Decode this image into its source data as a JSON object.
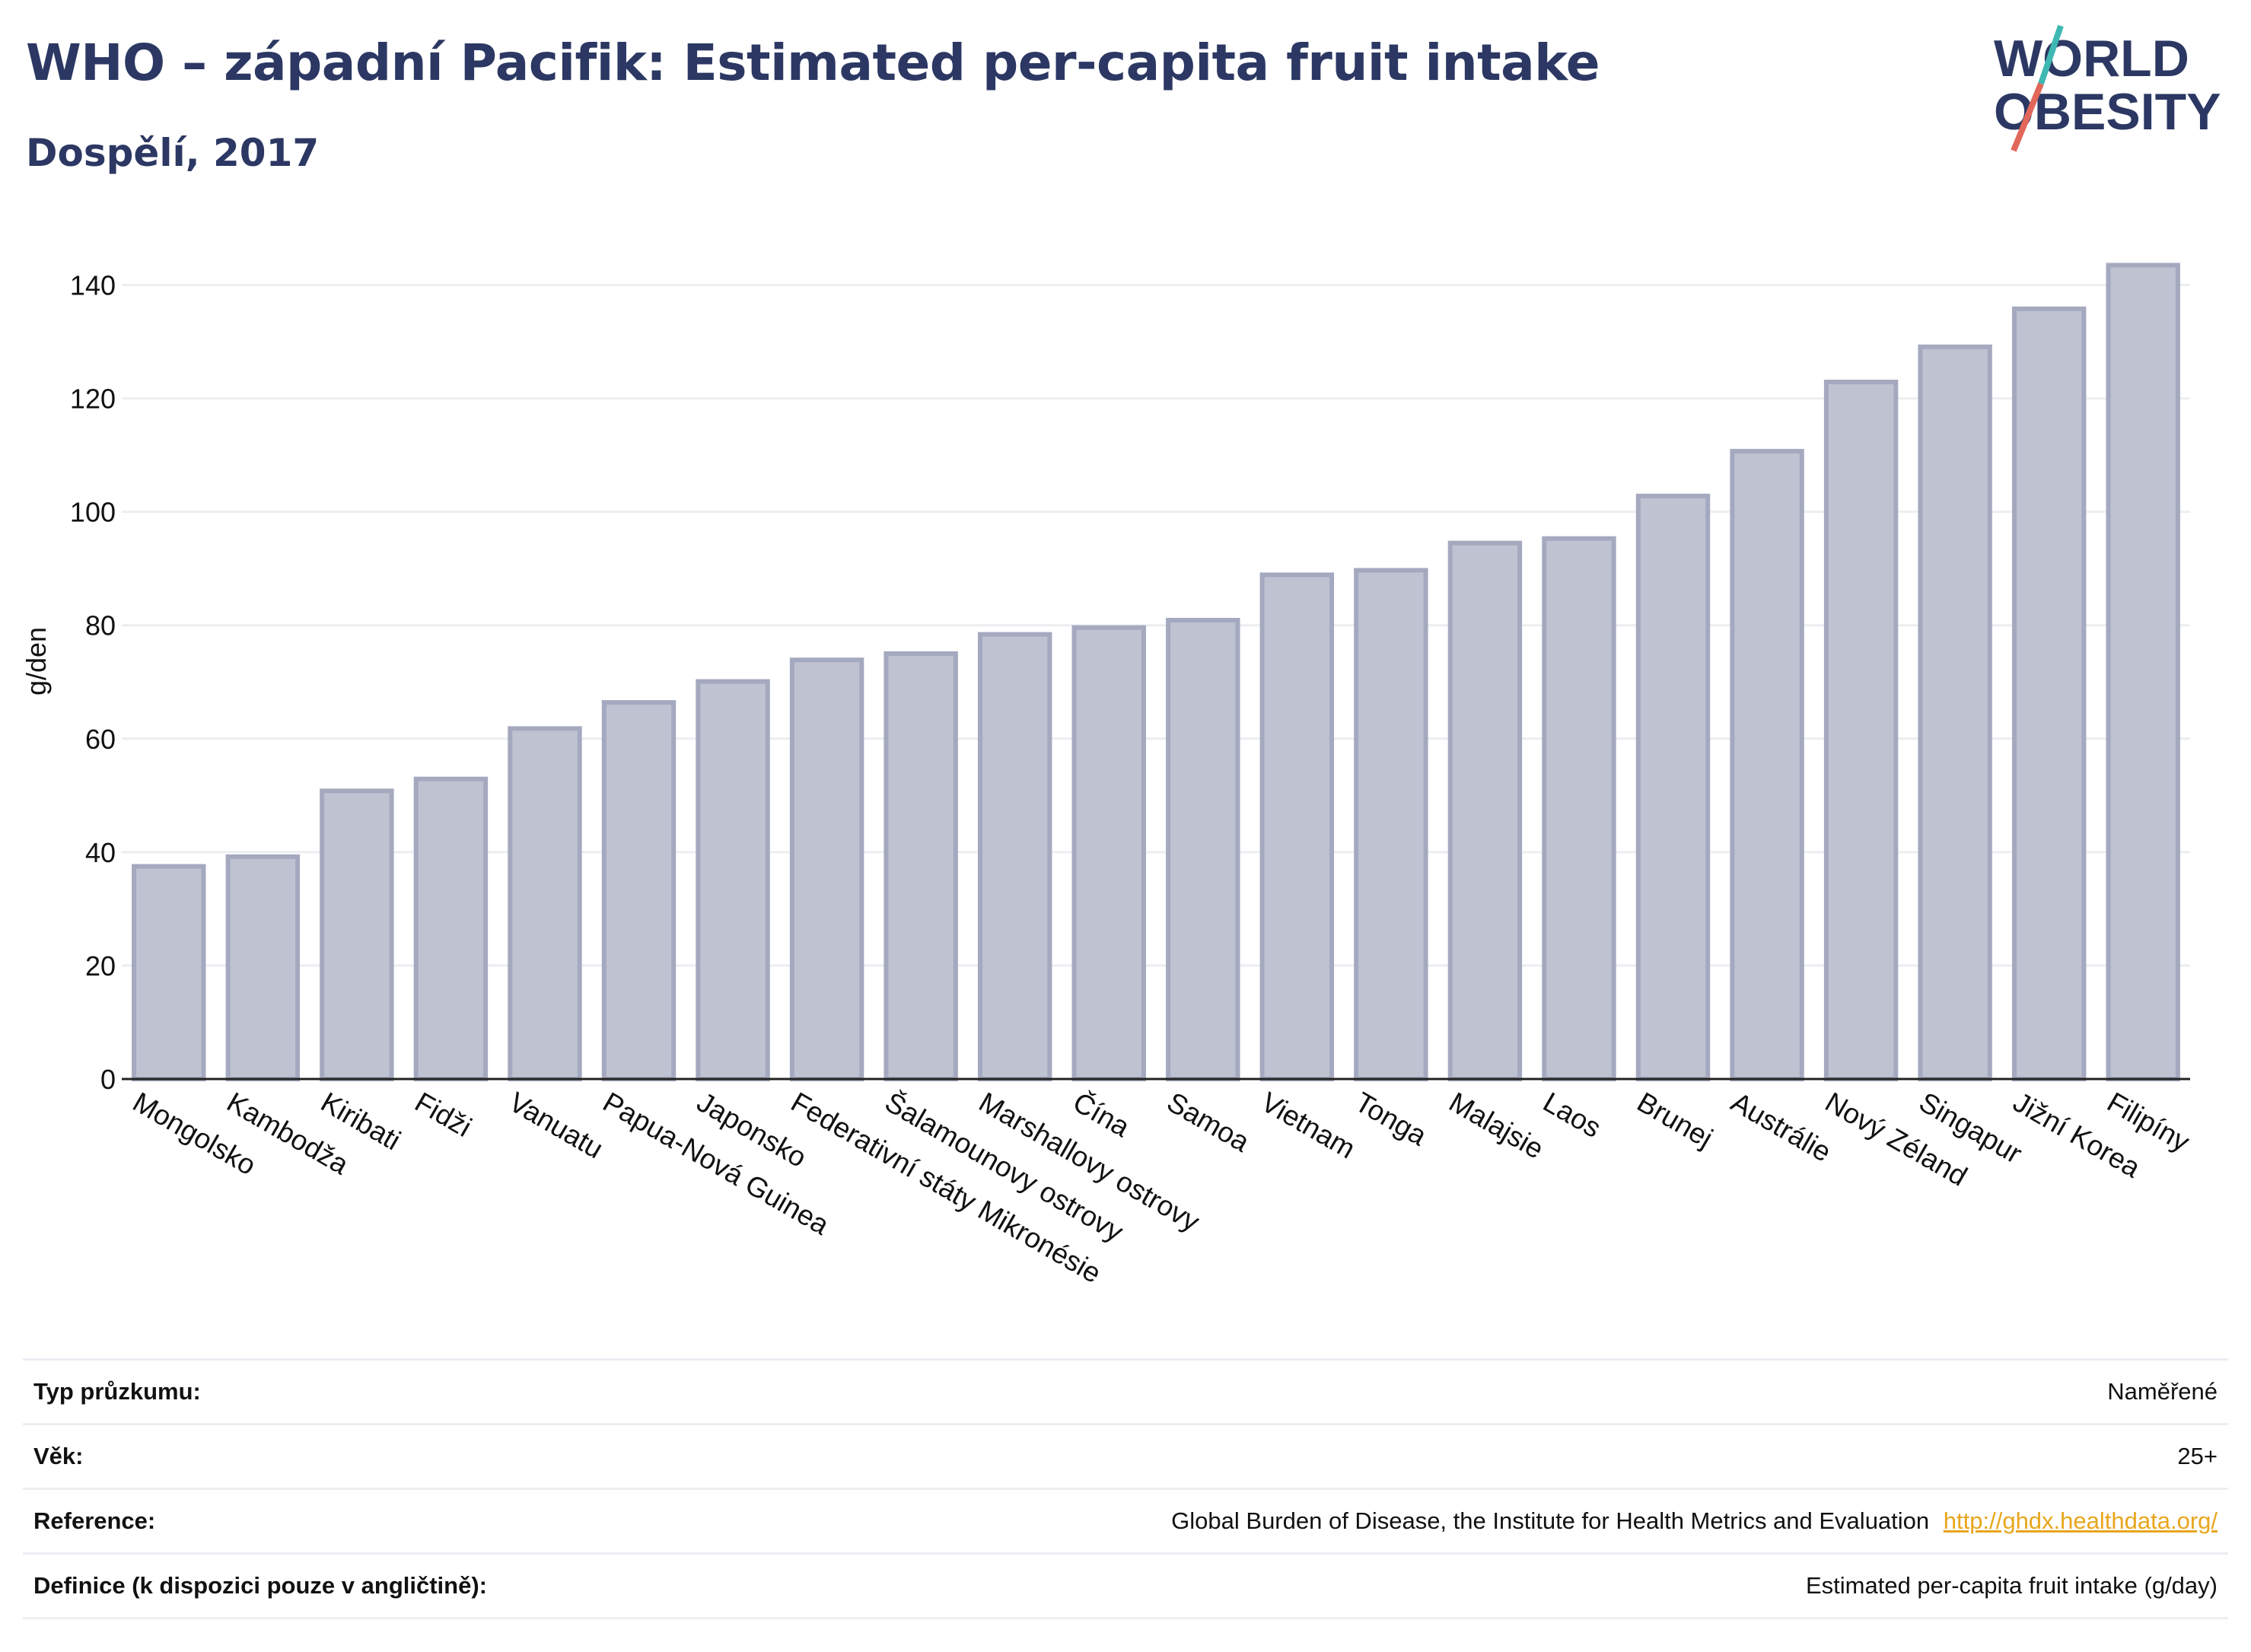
{
  "header": {
    "title": "WHO – západní Pacifik: Estimated per-capita fruit intake",
    "subtitle": "Dospělí, 2017"
  },
  "logo": {
    "line1": "WORLD",
    "line2": "OBESITY"
  },
  "colors": {
    "bar_fill": "#bfc2d1",
    "bar_stroke": "#a4a9bf",
    "title": "#2c3863",
    "logo_slash_teal": "#3fb8b3",
    "logo_slash_red": "#e2675a",
    "link": "#e8a61c"
  },
  "chart_data": {
    "type": "bar",
    "ylabel": "g/den",
    "ylim": [
      0,
      150
    ],
    "yticks": [
      0,
      20,
      40,
      60,
      80,
      100,
      120,
      140
    ],
    "grid": true,
    "categories": [
      "Mongolsko",
      "Kambodža",
      "Kiribati",
      "Fidži",
      "Vanuatu",
      "Papua-Nová Guinea",
      "Japonsko",
      "Federativní státy Mikronésie",
      "Šalamounovy ostrovy",
      "Marshallovy ostrovy",
      "Čína",
      "Samoa",
      "Vietnam",
      "Tonga",
      "Malajsie",
      "Laos",
      "Brunej",
      "Austrálie",
      "Nový Zéland",
      "Singapur",
      "Jižní Korea",
      "Filipíny"
    ],
    "values": [
      37.5,
      39.2,
      50.8,
      52.9,
      61.8,
      66.4,
      70.1,
      73.9,
      75.0,
      78.4,
      79.6,
      80.9,
      88.9,
      89.7,
      94.5,
      95.3,
      102.8,
      110.7,
      122.9,
      129.1,
      135.8,
      143.5
    ]
  },
  "info": [
    {
      "label": "Typ průzkumu:",
      "value": "Naměřené",
      "link": ""
    },
    {
      "label": "Věk:",
      "value": "25+",
      "link": ""
    },
    {
      "label": "Reference:",
      "value": "Global Burden of Disease, the Institute for Health Metrics and Evaluation",
      "link": "http://ghdx.healthdata.org/"
    },
    {
      "label": "Definice (k dispozici pouze v angličtině):",
      "value": "Estimated per-capita fruit intake (g/day)",
      "link": ""
    }
  ]
}
